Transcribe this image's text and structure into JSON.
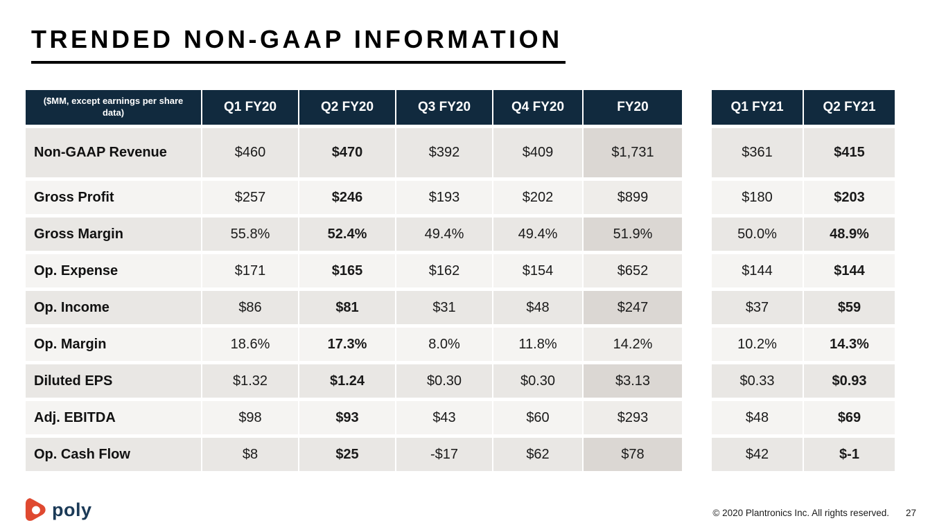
{
  "slide": {
    "title": "TRENDED NON-GAAP INFORMATION"
  },
  "table": {
    "corner_label": "($MM, except earnings per share data)",
    "fy20_columns": [
      "Q1 FY20",
      "Q2 FY20",
      "Q3 FY20",
      "Q4 FY20",
      "FY20"
    ],
    "fy21_columns": [
      "Q1 FY21",
      "Q2 FY21"
    ],
    "emphasized_columns": [
      "Q2 FY20",
      "Q2 FY21"
    ],
    "rows": [
      {
        "label": "Non-GAAP Revenue",
        "fy20": [
          "$460",
          "$470",
          "$392",
          "$409",
          "$1,731"
        ],
        "fy21": [
          "$361",
          "$415"
        ]
      },
      {
        "label": "Gross Profit",
        "fy20": [
          "$257",
          "$246",
          "$193",
          "$202",
          "$899"
        ],
        "fy21": [
          "$180",
          "$203"
        ]
      },
      {
        "label": "Gross Margin",
        "fy20": [
          "55.8%",
          "52.4%",
          "49.4%",
          "49.4%",
          "51.9%"
        ],
        "fy21": [
          "50.0%",
          "48.9%"
        ]
      },
      {
        "label": "Op. Expense",
        "fy20": [
          "$171",
          "$165",
          "$162",
          "$154",
          "$652"
        ],
        "fy21": [
          "$144",
          "$144"
        ]
      },
      {
        "label": "Op. Income",
        "fy20": [
          "$86",
          "$81",
          "$31",
          "$48",
          "$247"
        ],
        "fy21": [
          "$37",
          "$59"
        ]
      },
      {
        "label": "Op. Margin",
        "fy20": [
          "18.6%",
          "17.3%",
          "8.0%",
          "11.8%",
          "14.2%"
        ],
        "fy21": [
          "10.2%",
          "14.3%"
        ]
      },
      {
        "label": "Diluted EPS",
        "fy20": [
          "$1.32",
          "$1.24",
          "$0.30",
          "$0.30",
          "$3.13"
        ],
        "fy21": [
          "$0.33",
          "$0.93"
        ]
      },
      {
        "label": "Adj. EBITDA",
        "fy20": [
          "$98",
          "$93",
          "$43",
          "$60",
          "$293"
        ],
        "fy21": [
          "$48",
          "$69"
        ]
      },
      {
        "label": "Op. Cash Flow",
        "fy20": [
          "$8",
          "$25",
          "-$17",
          "$62",
          "$78"
        ],
        "fy21": [
          "$42",
          "$-1"
        ]
      }
    ]
  },
  "footer": {
    "logo_text": "poly",
    "copyright": "© 2020 Plantronics Inc. All rights reserved.",
    "page_number": "27"
  },
  "colors": {
    "header_navy": "#112A3E",
    "row_odd": "#E9E7E4",
    "row_even": "#F5F4F2",
    "fy20_col_odd": "#DBD7D3",
    "fy20_col_even": "#EFEDEA",
    "logo_red": "#DF4930",
    "logo_navy": "#1B3A57"
  }
}
